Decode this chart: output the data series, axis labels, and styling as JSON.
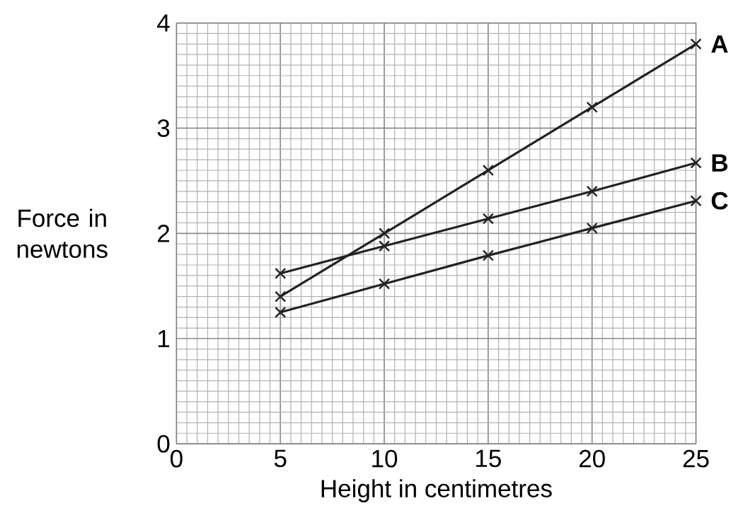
{
  "chart_data": {
    "type": "line",
    "xlabel": "Height in centimetres",
    "ylabel": "Force in newtons",
    "x": [
      5,
      10,
      15,
      20,
      25
    ],
    "series": [
      {
        "name": "A",
        "color": "#222222",
        "values": [
          1.4,
          2.0,
          2.6,
          3.2,
          3.8
        ]
      },
      {
        "name": "B",
        "color": "#222222",
        "values": [
          1.62,
          1.88,
          2.14,
          2.4,
          2.67
        ]
      },
      {
        "name": "C",
        "color": "#222222",
        "values": [
          1.25,
          1.52,
          1.79,
          2.05,
          2.31
        ]
      }
    ],
    "xlim": [
      0,
      25
    ],
    "ylim": [
      0,
      4
    ],
    "xticks": [
      0,
      5,
      10,
      15,
      20,
      25
    ],
    "yticks": [
      0,
      1,
      2,
      3,
      4
    ],
    "grid": true,
    "marker": "cross",
    "line_style": "solid"
  }
}
